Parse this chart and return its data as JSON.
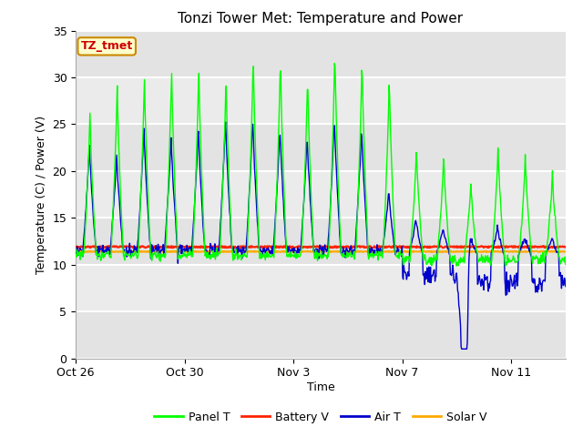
{
  "title": "Tonzi Tower Met: Temperature and Power",
  "xlabel": "Time",
  "ylabel": "Temperature (C) / Power (V)",
  "ylim": [
    0,
    35
  ],
  "yticks": [
    0,
    5,
    10,
    15,
    20,
    25,
    30,
    35
  ],
  "legend_labels": [
    "Panel T",
    "Battery V",
    "Air T",
    "Solar V"
  ],
  "legend_colors": [
    "#00ff00",
    "#ff2200",
    "#0000cc",
    "#ffaa00"
  ],
  "annotation_text": "TZ_tmet",
  "annotation_bg": "#ffffcc",
  "annotation_border": "#cc8800",
  "annotation_text_color": "#cc0000",
  "fig_bg": "#ffffff",
  "plot_bg": "#f0f0f0",
  "grid_color": "#ffffff",
  "xtick_labels": [
    "Oct 26",
    "Oct 30",
    "Nov 3",
    "Nov 7",
    "Nov 11"
  ],
  "xtick_positions": [
    0,
    4,
    8,
    12,
    16
  ],
  "total_days": 18,
  "battery_v_level": 11.9,
  "solar_v_level": 11.4
}
